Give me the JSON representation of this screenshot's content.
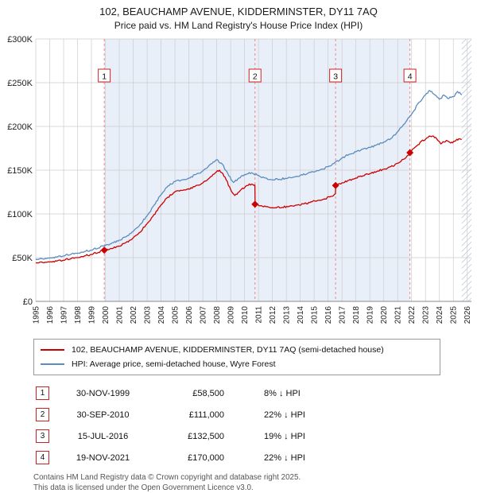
{
  "title": "102, BEAUCHAMP AVENUE, KIDDERMINSTER, DY11 7AQ",
  "subtitle": "Price paid vs. HM Land Registry's House Price Index (HPI)",
  "legend": {
    "property": "102, BEAUCHAMP AVENUE, KIDDERMINSTER, DY11 7AQ (semi-detached house)",
    "hpi": "HPI: Average price, semi-detached house, Wyre Forest"
  },
  "footer": {
    "line1": "Contains HM Land Registry data © Crown copyright and database right 2025.",
    "line2": "This data is licensed under the Open Government Licence v3.0."
  },
  "transactions": [
    {
      "num": "1",
      "date": "30-NOV-1999",
      "price": "£58,500",
      "hpi_diff": "8% ↓ HPI",
      "year": 1999.92,
      "value_k": 58.5
    },
    {
      "num": "2",
      "date": "30-SEP-2010",
      "price": "£111,000",
      "hpi_diff": "22% ↓ HPI",
      "year": 2010.75,
      "value_k": 111
    },
    {
      "num": "3",
      "date": "15-JUL-2016",
      "price": "£132,500",
      "hpi_diff": "19% ↓ HPI",
      "year": 2016.54,
      "value_k": 132.5
    },
    {
      "num": "4",
      "date": "19-NOV-2021",
      "price": "£170,000",
      "hpi_diff": "22% ↓ HPI",
      "year": 2021.88,
      "value_k": 170
    }
  ],
  "chart_data": {
    "type": "line",
    "title": "Price paid vs. HM Land Registry's House Price Index (HPI)",
    "xlabel": "Year",
    "ylabel": "Price",
    "y_unit": "GBP thousands (K)",
    "x_range": [
      1995,
      2026.3
    ],
    "y_range": [
      0,
      300
    ],
    "grid": true,
    "legend_position": "below",
    "x_ticks": [
      1995,
      1996,
      1997,
      1998,
      1999,
      2000,
      2001,
      2002,
      2003,
      2004,
      2005,
      2006,
      2007,
      2008,
      2009,
      2010,
      2011,
      2012,
      2013,
      2014,
      2015,
      2016,
      2017,
      2018,
      2019,
      2020,
      2021,
      2022,
      2023,
      2024,
      2025,
      2026
    ],
    "y_ticks": [
      {
        "v": 0,
        "label": "£0"
      },
      {
        "v": 50,
        "label": "£50K"
      },
      {
        "v": 100,
        "label": "£100K"
      },
      {
        "v": 150,
        "label": "£150K"
      },
      {
        "v": 200,
        "label": "£200K"
      },
      {
        "v": 250,
        "label": "£250K"
      },
      {
        "v": 300,
        "label": "£300K"
      }
    ],
    "shaded_region": [
      1999.92,
      2021.88
    ],
    "hatched_region": [
      2025.6,
      2026.3
    ],
    "colors": {
      "property": "#cc0000",
      "hpi": "#5b8cbe",
      "grid": "#cccccc",
      "shade": "#e9eff9",
      "hatch": "#b6c2d2",
      "marker_line": "#ee8888",
      "axis": "#888888"
    },
    "series": [
      {
        "name": "HPI: Average price, semi-detached house, Wyre Forest",
        "color": "#5b8cbe",
        "points": [
          [
            1995,
            48
          ],
          [
            1995.5,
            48.5
          ],
          [
            1996,
            49.5
          ],
          [
            1996.5,
            50.5
          ],
          [
            1997,
            52
          ],
          [
            1997.5,
            53.5
          ],
          [
            1998,
            55
          ],
          [
            1998.5,
            57
          ],
          [
            1999,
            58.5
          ],
          [
            1999.5,
            61
          ],
          [
            2000,
            64
          ],
          [
            2000.5,
            67
          ],
          [
            2001,
            70
          ],
          [
            2001.5,
            74
          ],
          [
            2002,
            80
          ],
          [
            2002.5,
            88
          ],
          [
            2003,
            98
          ],
          [
            2003.5,
            110
          ],
          [
            2004,
            122
          ],
          [
            2004.5,
            132
          ],
          [
            2005,
            137
          ],
          [
            2005.5,
            139
          ],
          [
            2006,
            141
          ],
          [
            2006.5,
            145
          ],
          [
            2007,
            149
          ],
          [
            2007.5,
            156
          ],
          [
            2008,
            162
          ],
          [
            2008.4,
            157
          ],
          [
            2008.8,
            146
          ],
          [
            2009.2,
            136
          ],
          [
            2009.6,
            141
          ],
          [
            2010,
            145
          ],
          [
            2010.5,
            147
          ],
          [
            2011,
            144
          ],
          [
            2011.5,
            141
          ],
          [
            2012,
            139
          ],
          [
            2012.5,
            139.5
          ],
          [
            2013,
            140.5
          ],
          [
            2013.5,
            142
          ],
          [
            2014,
            144
          ],
          [
            2014.5,
            146
          ],
          [
            2015,
            148
          ],
          [
            2015.5,
            151
          ],
          [
            2016,
            154
          ],
          [
            2016.5,
            159
          ],
          [
            2017,
            164
          ],
          [
            2017.5,
            168
          ],
          [
            2018,
            171
          ],
          [
            2018.5,
            174
          ],
          [
            2019,
            176
          ],
          [
            2019.5,
            179
          ],
          [
            2020,
            182
          ],
          [
            2020.5,
            186
          ],
          [
            2021,
            194
          ],
          [
            2021.5,
            203
          ],
          [
            2022,
            214
          ],
          [
            2022.5,
            227
          ],
          [
            2023,
            236
          ],
          [
            2023.3,
            241
          ],
          [
            2023.6,
            237
          ],
          [
            2024,
            231
          ],
          [
            2024.3,
            236
          ],
          [
            2024.6,
            232
          ],
          [
            2025,
            234
          ],
          [
            2025.3,
            240
          ],
          [
            2025.6,
            236
          ]
        ]
      },
      {
        "name": "102, BEAUCHAMP AVENUE, KIDDERMINSTER, DY11 7AQ (semi-detached house)",
        "color": "#cc0000",
        "points": [
          [
            1995,
            44
          ],
          [
            1995.5,
            44.5
          ],
          [
            1996,
            45
          ],
          [
            1996.5,
            46
          ],
          [
            1997,
            47
          ],
          [
            1997.5,
            48.5
          ],
          [
            1998,
            50
          ],
          [
            1998.5,
            52
          ],
          [
            1999,
            53.5
          ],
          [
            1999.5,
            56
          ],
          [
            1999.92,
            58.5
          ],
          [
            2000.4,
            60.5
          ],
          [
            2000.9,
            63
          ],
          [
            2001.4,
            66.5
          ],
          [
            2001.9,
            71
          ],
          [
            2002.4,
            78
          ],
          [
            2002.9,
            87
          ],
          [
            2003.4,
            97
          ],
          [
            2003.9,
            108
          ],
          [
            2004.4,
            118
          ],
          [
            2004.9,
            124
          ],
          [
            2005.4,
            127
          ],
          [
            2005.9,
            128.5
          ],
          [
            2006.4,
            131
          ],
          [
            2006.9,
            134.5
          ],
          [
            2007.4,
            140
          ],
          [
            2007.9,
            147
          ],
          [
            2008.2,
            150
          ],
          [
            2008.6,
            142
          ],
          [
            2009,
            128
          ],
          [
            2009.3,
            121
          ],
          [
            2009.7,
            127
          ],
          [
            2010.1,
            132
          ],
          [
            2010.5,
            134
          ],
          [
            2010.74,
            133
          ],
          [
            2010.76,
            111
          ],
          [
            2011.2,
            109.5
          ],
          [
            2011.7,
            108
          ],
          [
            2012.2,
            107
          ],
          [
            2012.7,
            107.5
          ],
          [
            2013.2,
            108.5
          ],
          [
            2013.7,
            110
          ],
          [
            2014.2,
            111.5
          ],
          [
            2014.7,
            113
          ],
          [
            2015.2,
            115
          ],
          [
            2015.7,
            117
          ],
          [
            2016.2,
            120
          ],
          [
            2016.53,
            123
          ],
          [
            2016.55,
            132.5
          ],
          [
            2017,
            135.5
          ],
          [
            2017.5,
            138.5
          ],
          [
            2018,
            141
          ],
          [
            2018.5,
            143.5
          ],
          [
            2019,
            146
          ],
          [
            2019.5,
            148.5
          ],
          [
            2020,
            151
          ],
          [
            2020.5,
            154
          ],
          [
            2021,
            158
          ],
          [
            2021.5,
            163
          ],
          [
            2021.87,
            168
          ],
          [
            2021.89,
            170
          ],
          [
            2022.3,
            177
          ],
          [
            2022.7,
            183
          ],
          [
            2023.1,
            187
          ],
          [
            2023.5,
            189
          ],
          [
            2023.8,
            186
          ],
          [
            2024.1,
            180
          ],
          [
            2024.5,
            184
          ],
          [
            2024.8,
            181
          ],
          [
            2025.1,
            183
          ],
          [
            2025.4,
            186
          ],
          [
            2025.6,
            185
          ]
        ]
      }
    ]
  }
}
